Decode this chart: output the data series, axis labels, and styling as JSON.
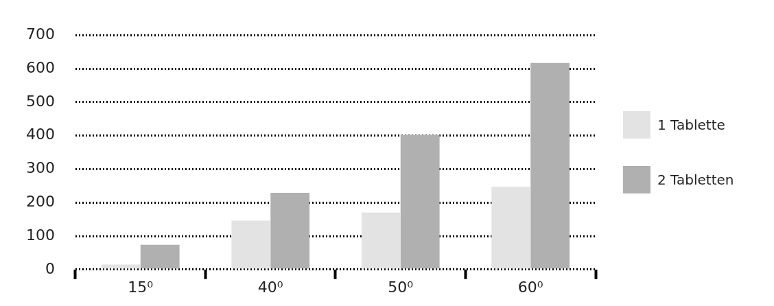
{
  "chart_data": {
    "type": "bar",
    "categories": [
      "15⁰",
      "40⁰",
      "50⁰",
      "60⁰"
    ],
    "series": [
      {
        "name": "1 Tablette",
        "color": "#e3e3e3",
        "values": [
          15,
          146,
          170,
          247
        ]
      },
      {
        "name": "2 Tabletten",
        "color": "#b0b0b0",
        "values": [
          74,
          229,
          402,
          617
        ]
      }
    ],
    "ylim": [
      0,
      700
    ],
    "yticks": [
      0,
      100,
      200,
      300,
      400,
      500,
      600,
      700
    ],
    "grid": "y",
    "legend": "right"
  }
}
